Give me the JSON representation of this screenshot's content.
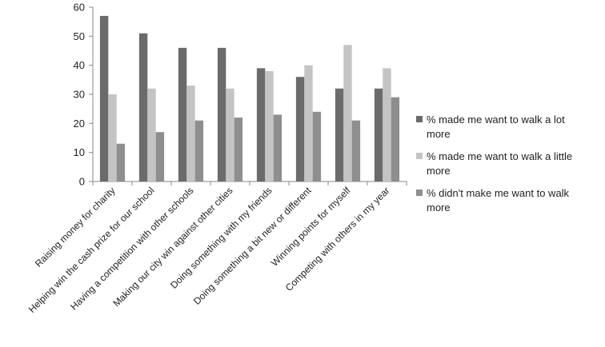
{
  "chart_data": {
    "type": "bar",
    "categories": [
      "Raising money for charity",
      "Helping win the cash prize for our school",
      "Having a competition with other schools",
      "Making our city win against other cities",
      "Doing something with my friends",
      "Doing something a bit new or different",
      "Winning points for myself",
      "Competing with others in my year"
    ],
    "series": [
      {
        "name": "% made me want to walk a lot more",
        "name_lines": [
          "% made me want to walk a lot",
          "more"
        ],
        "color": "#6b6b6b",
        "values": [
          57,
          51,
          46,
          46,
          39,
          36,
          32,
          32
        ]
      },
      {
        "name": "% made me want to walk a little more",
        "name_lines": [
          "% made me want to walk a little",
          "more"
        ],
        "color": "#c4c4c4",
        "values": [
          30,
          32,
          33,
          32,
          38,
          40,
          47,
          39
        ]
      },
      {
        "name": "% didn't make me want to walk more",
        "name_lines": [
          "% didn't make me want to walk",
          "more"
        ],
        "color": "#8e8e8e",
        "values": [
          13,
          17,
          21,
          22,
          23,
          24,
          21,
          29
        ]
      }
    ],
    "ylim": [
      0,
      60
    ],
    "yticks": [
      0,
      10,
      20,
      30,
      40,
      50,
      60
    ],
    "grid": false,
    "legend_position": "right",
    "title": "",
    "xlabel": "",
    "ylabel": ""
  }
}
